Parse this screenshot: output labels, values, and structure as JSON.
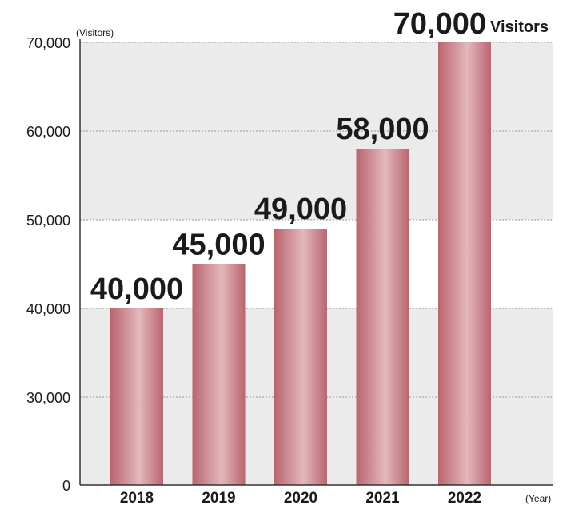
{
  "chart_data": {
    "type": "bar",
    "categories": [
      "2018",
      "2019",
      "2020",
      "2021",
      "2022"
    ],
    "values": [
      40000,
      45000,
      49000,
      58000,
      70000
    ],
    "data_labels": [
      "40,000",
      "45,000",
      "49,000",
      "58,000",
      "70,000"
    ],
    "last_label_suffix": "Visitors",
    "y_unit": "(Visitors)",
    "x_unit": "(Year)",
    "yticks": [
      {
        "value": 0,
        "label": "0"
      },
      {
        "value": 30000,
        "label": "30,000"
      },
      {
        "value": 40000,
        "label": "40,000"
      },
      {
        "value": 50000,
        "label": "50,000"
      },
      {
        "value": 60000,
        "label": "60,000"
      },
      {
        "value": 70000,
        "label": "70,000"
      }
    ],
    "axis_break": true,
    "ylim": [
      0,
      70000
    ],
    "grid": true,
    "colors": {
      "bar_edge": "#b9656e",
      "bar_highlight": "#e3b8bd",
      "band": "#ebebeb",
      "grid": "#9a9a9a"
    }
  }
}
